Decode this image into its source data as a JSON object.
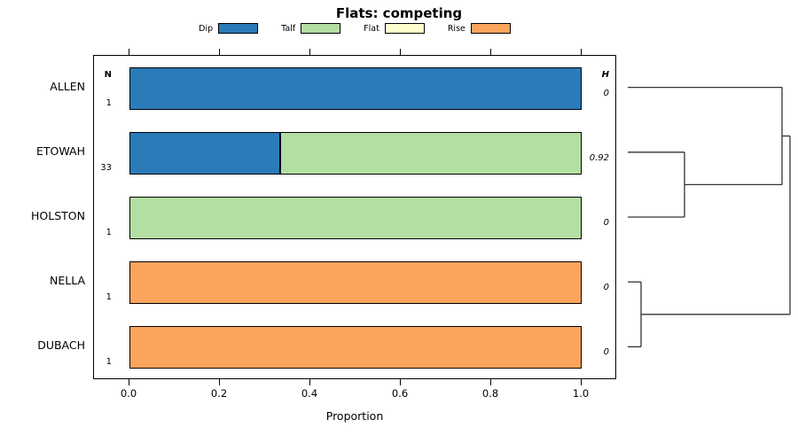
{
  "title": "Flats: competing",
  "legend": [
    {
      "label": "Dip",
      "color": "#2b7bb9"
    },
    {
      "label": "Talf",
      "color": "#b3dfa2"
    },
    {
      "label": "Flat",
      "color": "#ffffcc"
    },
    {
      "label": "Rise",
      "color": "#fba45d"
    }
  ],
  "columns": {
    "n_header": "N",
    "h_header": "H"
  },
  "axis": {
    "label": "Proportion",
    "ticks": [
      "0.0",
      "0.2",
      "0.4",
      "0.6",
      "0.8",
      "1.0"
    ],
    "tick_values": [
      0,
      0.2,
      0.4,
      0.6,
      0.8,
      1
    ]
  },
  "chart_data": {
    "type": "bar",
    "orientation": "horizontal-stacked",
    "title": "Flats: competing",
    "xlabel": "Proportion",
    "xlim": [
      0,
      1
    ],
    "categories": [
      "ALLEN",
      "ETOWAH",
      "HOLSTON",
      "NELLA",
      "DUBACH"
    ],
    "n_values": [
      1,
      33,
      1,
      1,
      1
    ],
    "h_values": [
      "0",
      "0.92",
      "0",
      "0",
      "0"
    ],
    "series": [
      {
        "name": "Dip",
        "values": [
          1,
          0.333,
          0,
          0,
          0
        ]
      },
      {
        "name": "Talf",
        "values": [
          0,
          0.667,
          1,
          0,
          0
        ]
      },
      {
        "name": "Flat",
        "values": [
          0,
          0,
          0,
          0,
          0
        ]
      },
      {
        "name": "Rise",
        "values": [
          0,
          0,
          0,
          1,
          1
        ]
      }
    ],
    "legend_position": "top"
  },
  "dendrogram": {
    "segments": [
      [
        708,
        98.6,
        882,
        98.6
      ],
      [
        708,
        171.8,
        772,
        171.8
      ],
      [
        708,
        245.0,
        772,
        245.0
      ],
      [
        772,
        171.8,
        772,
        245.0
      ],
      [
        772,
        208.4,
        882,
        208.4
      ],
      [
        882,
        98.6,
        882,
        208.4
      ],
      [
        882,
        153.5,
        891,
        153.5
      ],
      [
        708,
        318.2,
        723,
        318.2
      ],
      [
        708,
        391.4,
        723,
        391.4
      ],
      [
        723,
        318.2,
        723,
        391.4
      ],
      [
        723,
        354.8,
        891,
        354.8
      ],
      [
        891,
        153.5,
        891,
        354.8
      ]
    ]
  }
}
